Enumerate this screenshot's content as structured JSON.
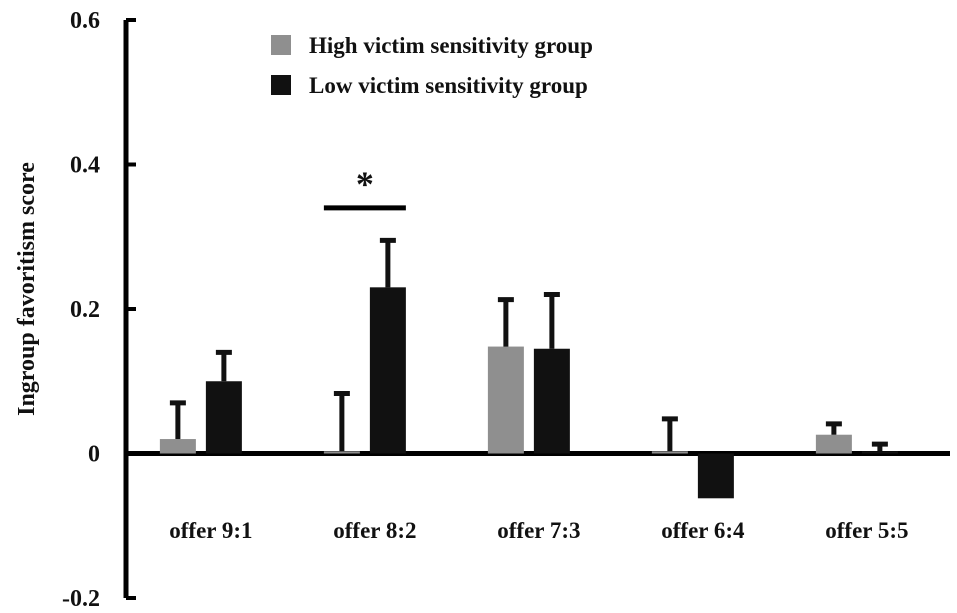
{
  "chart_data": {
    "type": "bar",
    "title": "",
    "xlabel": "",
    "ylabel": "Ingroup favoritism score",
    "ylim": [
      -0.2,
      0.6
    ],
    "yticks": [
      {
        "value": -0.2,
        "label": "-0.2"
      },
      {
        "value": 0,
        "label": "0"
      },
      {
        "value": 0.2,
        "label": "0.2"
      },
      {
        "value": 0.4,
        "label": "0.4"
      },
      {
        "value": 0.6,
        "label": "0.6"
      }
    ],
    "categories": [
      "offer 9:1",
      "offer 8:2",
      "offer 7:3",
      "offer 6:4",
      "offer 5:5"
    ],
    "series": [
      {
        "name": "High victim sensitivity group",
        "color": "#8f8f8f",
        "values": [
          0.02,
          0.003,
          0.148,
          0.003,
          0.026
        ],
        "errors": [
          0.05,
          0.08,
          0.065,
          0.045,
          0.015
        ]
      },
      {
        "name": "Low victim sensitivity group",
        "color": "#111111",
        "values": [
          0.1,
          0.23,
          0.145,
          -0.062,
          0.003
        ],
        "errors": [
          0.04,
          0.065,
          0.075,
          0.0,
          0.01
        ]
      }
    ],
    "significance": [
      {
        "category": "offer 8:2",
        "label": "*"
      }
    ],
    "legend_position": "top"
  }
}
